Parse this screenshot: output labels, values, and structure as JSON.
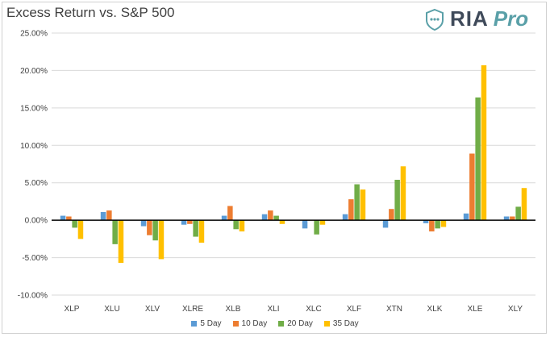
{
  "header": {
    "title": "Excess Return vs. S&P 500",
    "logo_primary": "RIA",
    "logo_secondary": "Pro"
  },
  "chart_data": {
    "type": "bar",
    "title": "Excess Return vs. S&P 500",
    "xlabel": "",
    "ylabel": "",
    "ylim": [
      -10,
      25
    ],
    "ytick_step": 5,
    "ytick_labels": [
      "-10.00%",
      "-5.00%",
      "0.00%",
      "5.00%",
      "10.00%",
      "15.00%",
      "20.00%",
      "25.00%"
    ],
    "grid": true,
    "legend_position": "bottom",
    "categories": [
      "XLP",
      "XLU",
      "XLV",
      "XLRE",
      "XLB",
      "XLI",
      "XLC",
      "XLF",
      "XTN",
      "XLK",
      "XLE",
      "XLY"
    ],
    "series": [
      {
        "name": "5 Day",
        "color": "#5b9bd5",
        "values": [
          0.6,
          1.1,
          -0.8,
          -0.6,
          0.6,
          0.8,
          -1.1,
          0.8,
          -1.0,
          -0.4,
          0.9,
          0.5
        ]
      },
      {
        "name": "10 Day",
        "color": "#ed7d31",
        "values": [
          0.5,
          1.3,
          -2.0,
          -0.5,
          1.9,
          1.3,
          0.0,
          2.8,
          1.5,
          -1.5,
          8.9,
          0.5
        ]
      },
      {
        "name": "20 Day",
        "color": "#70ad47",
        "values": [
          -1.0,
          -3.2,
          -2.7,
          -2.2,
          -1.2,
          0.6,
          -1.9,
          4.8,
          5.4,
          -1.1,
          16.4,
          1.8
        ]
      },
      {
        "name": "35 Day",
        "color": "#ffc000",
        "values": [
          -2.5,
          -5.7,
          -5.2,
          -3.0,
          -1.5,
          -0.5,
          -0.6,
          4.1,
          7.2,
          -0.9,
          20.7,
          4.3
        ]
      }
    ]
  }
}
